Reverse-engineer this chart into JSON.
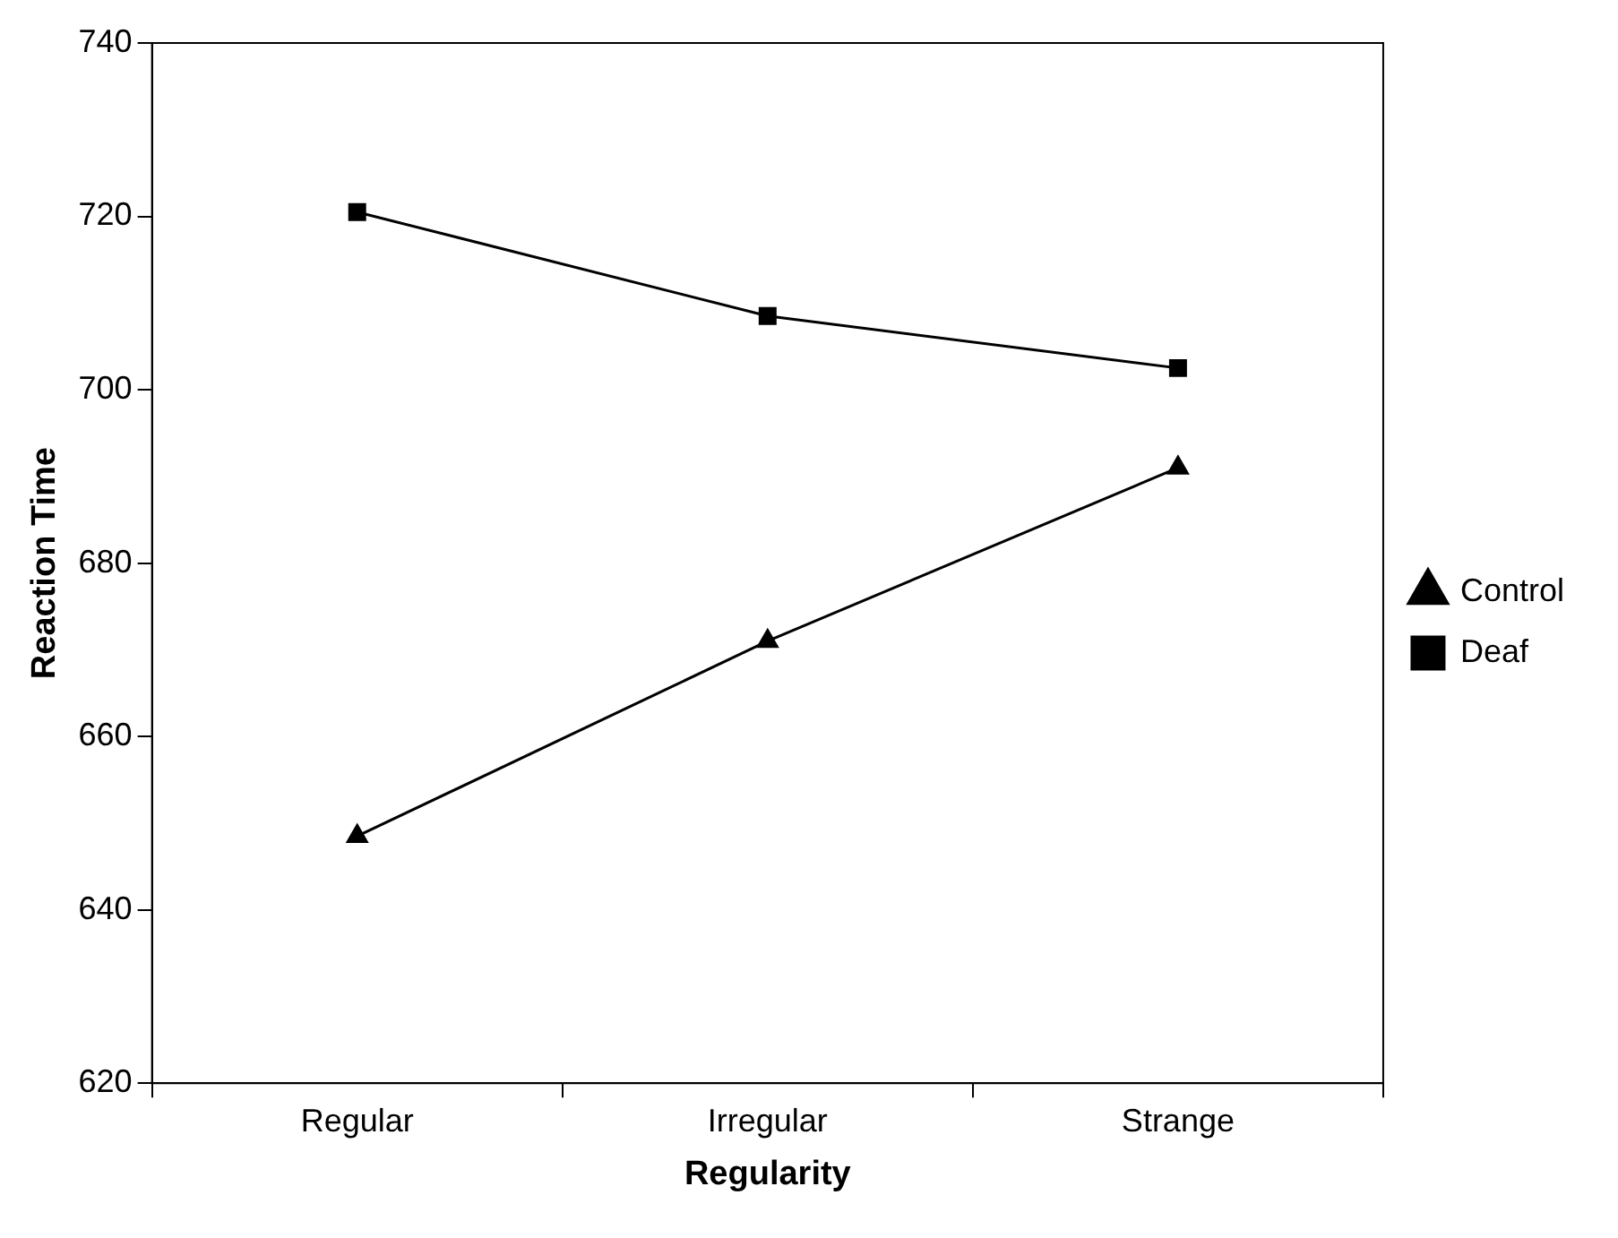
{
  "chart_data": {
    "type": "line",
    "xlabel": "Regularity",
    "ylabel": "Reaction Time",
    "categories": [
      "Regular",
      "Irregular",
      "Strange"
    ],
    "series": [
      {
        "name": "Control",
        "color": "#000000",
        "marker": "triangle",
        "values": [
          648.5,
          671,
          691
        ]
      },
      {
        "name": "Deaf",
        "color": "#000000",
        "marker": "square",
        "values": [
          720.5,
          708.5,
          702.5
        ]
      }
    ],
    "ylim": [
      620,
      740
    ],
    "yticks": [
      620,
      640,
      660,
      680,
      700,
      720,
      740
    ],
    "grid": false,
    "legend": "right",
    "line_style": "solid"
  }
}
